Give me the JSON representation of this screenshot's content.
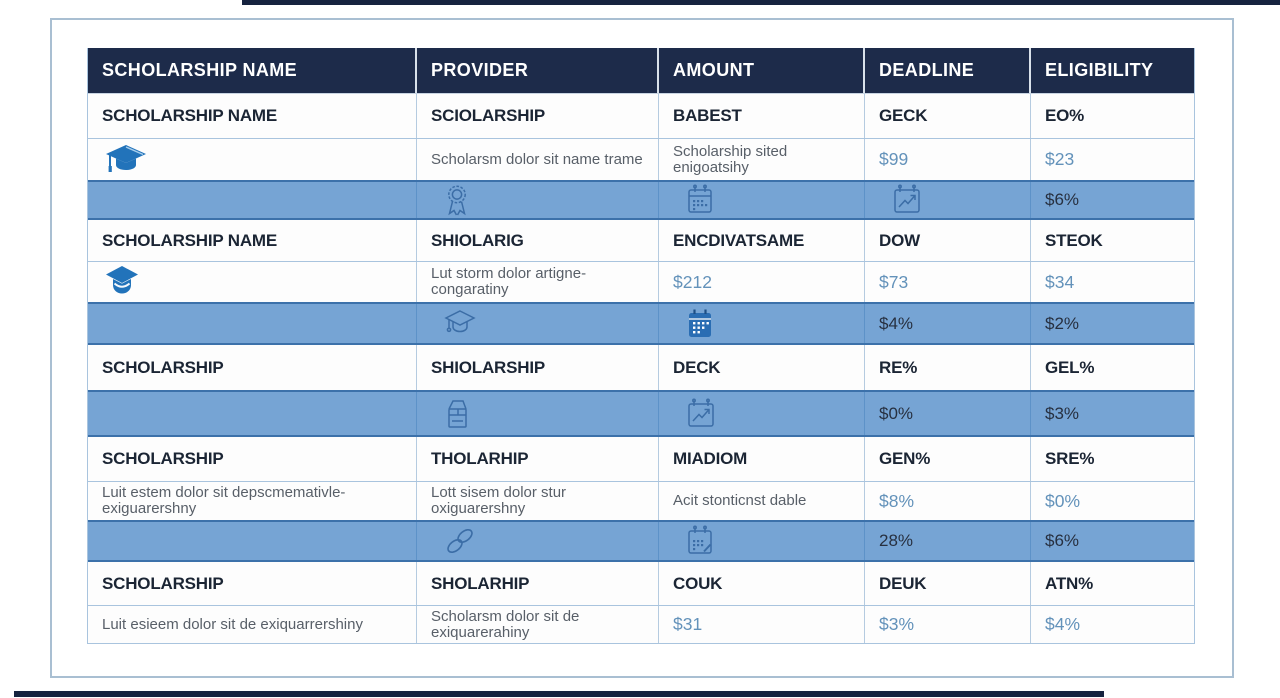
{
  "colors": {
    "navy": "#16233f",
    "header_bg": "#1d2b4a",
    "header_text": "#ffffff",
    "blue_row_bg": "#76a4d4",
    "border_blue": "#3c71aa",
    "value_blue": "#6392ba",
    "dark_text": "#1b2534",
    "gray_text": "#585f68",
    "icon_stroke_blue": "#3b6da6",
    "cap_fill_blue": "#2273ba"
  },
  "table": {
    "headers": [
      "SCHOLARSHIP NAME",
      "PROVIDER",
      "AMOUNT",
      "DEADLINE",
      "ELIGIBILITY"
    ],
    "rows": [
      {
        "type": "bold",
        "cells": [
          {
            "t": "SCHOLARSHIP NAME"
          },
          {
            "t": "SCIOLARSHIP"
          },
          {
            "t": "BABEST"
          },
          {
            "t": "GECK"
          },
          {
            "t": "EO%"
          }
        ]
      },
      {
        "type": "body",
        "cells": [
          {
            "icon": "graduation-cap-solid"
          },
          {
            "t": "Scholarsm dolor sit name trame",
            "s": "gray"
          },
          {
            "t": "Scholarship sited enigoatsihy",
            "s": "gray"
          },
          {
            "t": "$99",
            "s": "blue"
          },
          {
            "t": "$23",
            "s": "blue"
          }
        ]
      },
      {
        "type": "blue",
        "cells": [
          {},
          {
            "icon": "award-ribbon"
          },
          {
            "icon": "calendar"
          },
          {
            "icon": "calendar-chart"
          },
          {
            "t": "$6%",
            "s": "dark"
          }
        ]
      },
      {
        "type": "bold",
        "cells": [
          {
            "t": "SCHOLARSHIP NAME"
          },
          {
            "t": "SHIOLARIG"
          },
          {
            "t": "ENCDIVATSAME"
          },
          {
            "t": "DOW"
          },
          {
            "t": "STEOK"
          }
        ]
      },
      {
        "type": "body",
        "cells": [
          {
            "icon": "graduation-cap-solid-alt"
          },
          {
            "t": "Lut storm dolor artigne- congaratiny",
            "s": "gray"
          },
          {
            "t": "$212",
            "s": "blue"
          },
          {
            "t": "$73",
            "s": "blue"
          },
          {
            "t": "$34",
            "s": "blue"
          }
        ]
      },
      {
        "type": "blue",
        "cells": [
          {},
          {
            "icon": "graduation-cap-outline"
          },
          {
            "icon": "calendar-solid"
          },
          {
            "t": "$4%",
            "s": "dark"
          },
          {
            "t": "$2%",
            "s": "dark"
          }
        ]
      },
      {
        "type": "bold",
        "cells": [
          {
            "t": "SCHOLARSHIP"
          },
          {
            "t": "SHIOLARSHIP"
          },
          {
            "t": "DECK"
          },
          {
            "t": "RE%"
          },
          {
            "t": "GEL%"
          }
        ]
      },
      {
        "type": "blue",
        "cells": [
          {},
          {
            "icon": "package-box"
          },
          {
            "icon": "calendar-chart"
          },
          {
            "t": "$0%",
            "s": "dark"
          },
          {
            "t": "$3%",
            "s": "dark"
          }
        ]
      },
      {
        "type": "bold",
        "cells": [
          {
            "t": "SCHOLARSHIP"
          },
          {
            "t": "THOLARHIP"
          },
          {
            "t": "MIADIOM"
          },
          {
            "t": "GEN%"
          },
          {
            "t": "SRE%"
          }
        ]
      },
      {
        "type": "body",
        "cells": [
          {
            "t": "Luit estem dolor sit depscmemativle- exiguarershny",
            "s": "gray"
          },
          {
            "t": "Lott sisem dolor stur oxiguarershny",
            "s": "gray"
          },
          {
            "t": "Acit stonticnst dable",
            "s": "gray"
          },
          {
            "t": "$8%",
            "s": "blue"
          },
          {
            "t": "$0%",
            "s": "blue"
          }
        ]
      },
      {
        "type": "blue",
        "cells": [
          {},
          {
            "icon": "chain-links"
          },
          {
            "icon": "calendar-edit"
          },
          {
            "t": "28%",
            "s": "dark"
          },
          {
            "t": "$6%",
            "s": "dark"
          }
        ]
      },
      {
        "type": "bold",
        "cells": [
          {
            "t": "SCHOLARSHIP"
          },
          {
            "t": "SHOLARHIP"
          },
          {
            "t": "COUK"
          },
          {
            "t": "DEUK"
          },
          {
            "t": "ATN%"
          }
        ]
      },
      {
        "type": "body",
        "cells": [
          {
            "t": "Luit esieem dolor sit de exiquarrershiny",
            "s": "gray"
          },
          {
            "t": "Scholarsm dolor sit de exiquarerahiny",
            "s": "gray"
          },
          {
            "t": "$31",
            "s": "blue"
          },
          {
            "t": "$3%",
            "s": "blue"
          },
          {
            "t": "$4%",
            "s": "blue"
          }
        ]
      }
    ]
  }
}
